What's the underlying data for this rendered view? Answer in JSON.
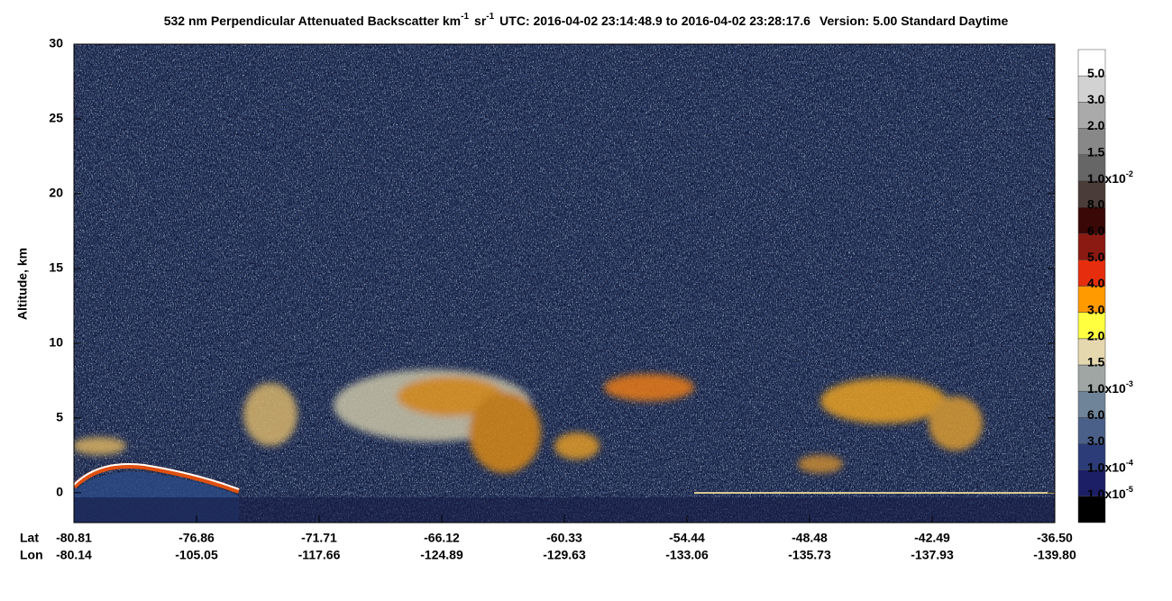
{
  "chart_data": {
    "type": "curtain",
    "title_segments": [
      {
        "text": "532 nm Perpendicular Attenuated Backscatter km"
      },
      {
        "text": "-1",
        "sup": true
      },
      {
        "text": "sr"
      },
      {
        "text": "-1",
        "sup": true
      },
      {
        "text": "UTC: 2016-04-02 23:14:48.9 to 2016-04-02 23:28:17.6"
      },
      {
        "text": "Version: 5.00 Standard Daytime"
      }
    ],
    "ylabel": "Altitude, km",
    "ylim": [
      -2,
      30
    ],
    "yticks": [
      0,
      5,
      10,
      15,
      20,
      25,
      30
    ],
    "lat_label": "Lat",
    "lon_label": "Lon",
    "lat_ticks": [
      "-80.81",
      "-76.86",
      "-71.71",
      "-66.12",
      "-60.33",
      "-54.44",
      "-48.48",
      "-42.49",
      "-36.50"
    ],
    "lon_ticks": [
      "-80.14",
      "-105.05",
      "-117.66",
      "-124.89",
      "-129.63",
      "-133.06",
      "-135.73",
      "-137.93",
      "-139.80"
    ],
    "colorbar": {
      "colors": [
        "#000000",
        "#1c1f66",
        "#2b3c78",
        "#4b6088",
        "#6f8499",
        "#9fa6a4",
        "#e6d8ae",
        "#ffff40",
        "#ff9a00",
        "#e62e0e",
        "#8a1a12",
        "#3a0806",
        "#4a3c38",
        "#666666",
        "#888888",
        "#aaaaaa",
        "#d2d2d2",
        "#ffffff"
      ],
      "labels": [
        {
          "text": "1.0x10",
          "sup": "-5"
        },
        {
          "text": "1.0x10",
          "sup": "-4"
        },
        "3.0",
        "6.0",
        {
          "text": "1.0x10",
          "sup": "-3"
        },
        "1.5",
        "2.0",
        "3.0",
        "4.0",
        "5.0",
        "6.0",
        "8.0",
        {
          "text": "1.0x10",
          "sup": "-2"
        },
        "1.5",
        "2.0",
        "3.0",
        "5.0"
      ]
    }
  }
}
